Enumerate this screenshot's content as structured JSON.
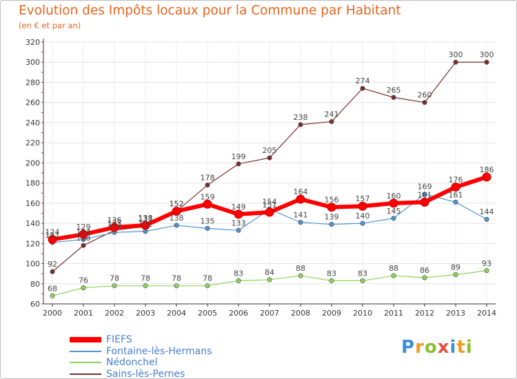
{
  "title": "Evolution des Impôts locaux pour la Commune par Habitant",
  "subtitle": "(en € et par an)",
  "brand": {
    "letters": [
      "P",
      "r",
      "o",
      "x",
      "i",
      "t",
      "i"
    ],
    "colors": [
      "#3c8fd0",
      "#f39a1f",
      "#8bbf2b",
      "#e84b3c",
      "#3c8fd0",
      "#f39a1f",
      "#8bbf2b"
    ]
  },
  "chart_data": {
    "type": "line",
    "title": "Evolution des Impôts locaux pour la Commune par Habitant",
    "subtitle": "(en € et par an)",
    "categories": [
      "2000",
      "2001",
      "2002",
      "2003",
      "2004",
      "2005",
      "2006",
      "2007",
      "2008",
      "2009",
      "2010",
      "2011",
      "2012",
      "2013",
      "2014"
    ],
    "ylim": [
      60,
      320
    ],
    "yticks": [
      60,
      80,
      100,
      120,
      140,
      160,
      180,
      200,
      220,
      240,
      260,
      280,
      300,
      320
    ],
    "grid": true,
    "legend_position": "bottom-left",
    "series": [
      {
        "name": "FIEFS",
        "color": "#ff0000",
        "values": [
          124,
          129,
          136,
          138,
          152,
          159,
          149,
          151,
          164,
          156,
          157,
          160,
          161,
          176,
          186
        ],
        "labels": [
          "124",
          "129",
          "136",
          "138",
          "152",
          "159",
          "149",
          "151",
          "164",
          "156",
          "157",
          "160",
          "161",
          "176",
          "186"
        ]
      },
      {
        "name": "Fontaine-lès-Hermans",
        "color": "#4f93d2",
        "values": [
          121,
          124,
          131,
          132,
          138,
          135,
          133,
          154,
          141,
          139,
          140,
          145,
          169,
          161,
          144
        ],
        "labels": [
          "121",
          "124",
          "131",
          "132",
          "138",
          "135",
          "133",
          "154",
          "141",
          "139",
          "140",
          "145",
          "169",
          "161",
          "144"
        ]
      },
      {
        "name": "Nédonchel",
        "color": "#8ed45a",
        "values": [
          68,
          76,
          78,
          78,
          78,
          78,
          83,
          84,
          88,
          83,
          83,
          88,
          86,
          89,
          93
        ],
        "labels": [
          "68",
          "76",
          "78",
          "78",
          "78",
          "78",
          "83",
          "84",
          "88",
          "83",
          "83",
          "88",
          "86",
          "89",
          "93"
        ]
      },
      {
        "name": "Sains-lès-Pernes",
        "color": "#7b2d2d",
        "values": [
          92,
          118,
          133,
          137,
          152,
          178,
          199,
          205,
          238,
          241,
          274,
          265,
          260,
          300,
          300
        ],
        "labels": [
          "92",
          "118",
          "133",
          "137",
          "152",
          "178",
          "199",
          "205",
          "238",
          "241",
          "274",
          "265",
          "260",
          "300",
          "300"
        ]
      }
    ]
  }
}
